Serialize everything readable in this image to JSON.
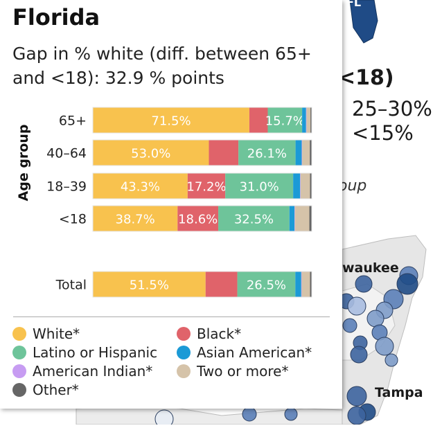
{
  "background": {
    "heading": "<18)",
    "legend_items": [
      "25–30%",
      "<15%"
    ],
    "group_text": "oup",
    "state_label": "FL",
    "cities": [
      "waukee",
      "Tampa"
    ]
  },
  "card": {
    "title": "Florida",
    "subtitle_line1": "Gap in % white (diff. between 65+",
    "subtitle_line2": "and <18): 32.9 % points"
  },
  "colors": {
    "White*": "#f8c24e",
    "Black*": "#e0636a",
    "Latino or Hispanic": "#6ec49a",
    "Asian American*": "#1b9ad6",
    "American Indian*": "#c79cf2",
    "Two or more*": "#d5c3a9",
    "Other*": "#666666"
  },
  "chart_data": {
    "type": "bar",
    "orientation": "horizontal",
    "stacked": true,
    "normalized": true,
    "ylabel": "Age group",
    "categories": [
      "65+",
      "40–64",
      "18–39",
      "<18",
      "Total"
    ],
    "series": [
      {
        "name": "White*",
        "values": [
          71.5,
          53.0,
          43.3,
          38.7,
          51.5
        ]
      },
      {
        "name": "Black*",
        "values": [
          8.4,
          13.5,
          17.2,
          18.6,
          14.5
        ]
      },
      {
        "name": "Latino or Hispanic",
        "values": [
          15.7,
          26.1,
          31.0,
          32.5,
          26.5
        ]
      },
      {
        "name": "Asian American*",
        "values": [
          1.8,
          2.8,
          3.2,
          2.3,
          2.7
        ]
      },
      {
        "name": "American Indian*",
        "values": [
          0.2,
          0.2,
          0.2,
          0.2,
          0.2
        ]
      },
      {
        "name": "Two or more*",
        "values": [
          1.8,
          3.5,
          4.3,
          6.6,
          3.8
        ]
      },
      {
        "name": "Other*",
        "values": [
          0.6,
          0.9,
          0.8,
          1.1,
          0.8
        ]
      }
    ],
    "data_labels": [
      [
        "71.5%",
        "",
        "15.7%",
        "",
        "",
        "",
        ""
      ],
      [
        "53.0%",
        "",
        "26.1%",
        "",
        "",
        "",
        ""
      ],
      [
        "43.3%",
        "17.2%",
        "31.0%",
        "",
        "",
        "",
        ""
      ],
      [
        "38.7%",
        "18.6%",
        "32.5%",
        "",
        "",
        "",
        ""
      ],
      [
        "51.5%",
        "",
        "26.5%",
        "",
        "",
        "",
        ""
      ]
    ],
    "legend": {
      "position": "bottom",
      "entries": [
        "White*",
        "Black*",
        "Latino or Hispanic",
        "Asian American*",
        "American Indian*",
        "Two or more*",
        "Other*"
      ]
    },
    "grid": false
  }
}
